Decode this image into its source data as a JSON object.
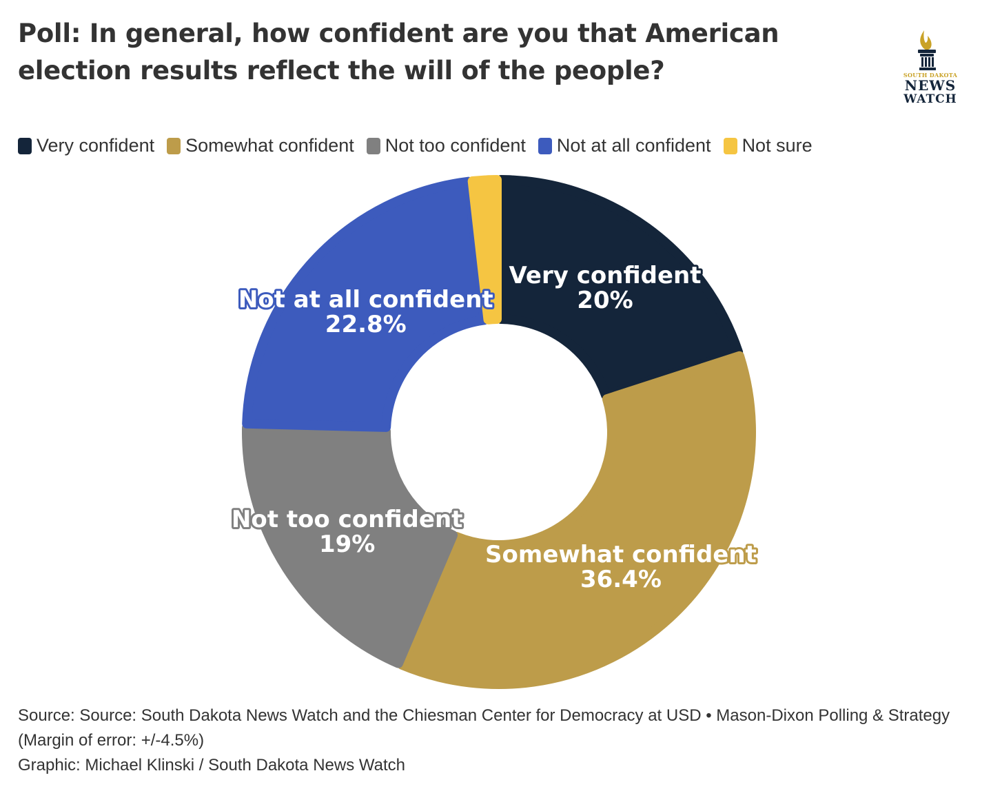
{
  "chart_data": {
    "type": "pie",
    "variant": "donut",
    "title": "Poll: In general, how confident are you that American election results reflect the will of the people?",
    "categories": [
      "Very confident",
      "Somewhat confident",
      "Not too confident",
      "Not at all confident",
      "Not sure"
    ],
    "values": [
      20,
      36.4,
      19,
      22.8,
      1.8
    ],
    "value_labels": [
      "20%",
      "36.4%",
      "19%",
      "22.8%",
      ""
    ],
    "colors": [
      "#14253a",
      "#bd9c4a",
      "#808080",
      "#3d5bbd",
      "#f5c542"
    ],
    "legend_position": "top-left",
    "source": "Source: Source: South Dakota News Watch and the Chiesman Center for Democracy at USD • Mason-Dixon Polling & Strategy (Margin of error: +/-4.5%)",
    "credit": "Graphic: Michael Klinski / South Dakota News Watch"
  },
  "logo": {
    "top": "SOUTH DAKOTA",
    "line1": "NEWS",
    "line2": "WATCH",
    "color_gold": "#c9a227",
    "color_navy": "#14253a"
  }
}
